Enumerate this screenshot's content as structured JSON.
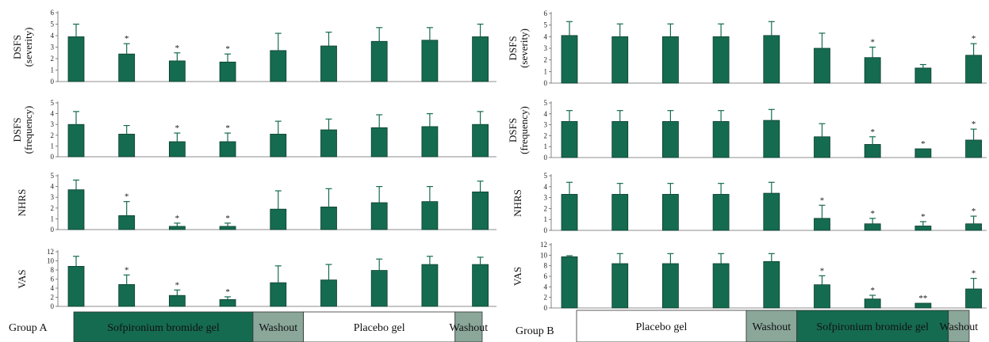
{
  "colors": {
    "bar": "#156b50",
    "bar_edge": "#0b3d2d",
    "error_bar": "#156b50",
    "active_segment": "#156b50",
    "washout_segment": "#8aa79a",
    "placebo_segment": "#ffffff"
  },
  "chart_data": [
    {
      "type": "bar",
      "panel": "A",
      "row": 0,
      "ylabel": [
        "DSFS",
        "(severity)"
      ],
      "yticks": [
        0,
        1,
        2,
        3,
        4,
        5,
        6
      ],
      "ylim": [
        0,
        6
      ],
      "values": [
        3.9,
        2.4,
        1.8,
        1.7,
        2.7,
        3.1,
        3.5,
        3.6,
        3.9
      ],
      "errors": [
        1.1,
        0.9,
        0.7,
        0.7,
        1.5,
        1.2,
        1.2,
        1.1,
        1.1
      ],
      "sig": [
        "",
        "*",
        "*",
        "*",
        "",
        "",
        "",
        "",
        ""
      ]
    },
    {
      "type": "bar",
      "panel": "A",
      "row": 1,
      "ylabel": [
        "DSFS",
        "(frequency)"
      ],
      "yticks": [
        0,
        1,
        2,
        3,
        4,
        5
      ],
      "ylim": [
        0,
        5
      ],
      "values": [
        3.0,
        2.1,
        1.4,
        1.4,
        2.1,
        2.5,
        2.7,
        2.8,
        3.0
      ],
      "errors": [
        1.2,
        0.8,
        0.8,
        0.8,
        1.2,
        1.0,
        1.2,
        1.2,
        1.2
      ],
      "sig": [
        "",
        "",
        "*",
        "*",
        "",
        "",
        "",
        "",
        ""
      ]
    },
    {
      "type": "bar",
      "panel": "A",
      "row": 2,
      "ylabel": [
        "NHRS"
      ],
      "yticks": [
        0,
        1,
        2,
        3,
        4,
        5
      ],
      "ylim": [
        0,
        5
      ],
      "values": [
        3.7,
        1.3,
        0.3,
        0.3,
        1.9,
        2.1,
        2.5,
        2.6,
        3.5
      ],
      "errors": [
        0.9,
        1.3,
        0.3,
        0.3,
        1.7,
        1.7,
        1.5,
        1.4,
        1.0
      ],
      "sig": [
        "",
        "*",
        "*",
        "*",
        "",
        "",
        "",
        "",
        ""
      ]
    },
    {
      "type": "bar",
      "panel": "A",
      "row": 3,
      "ylabel": [
        "VAS"
      ],
      "yticks": [
        0,
        2,
        4,
        6,
        8,
        10,
        12
      ],
      "ylim": [
        0,
        12
      ],
      "values": [
        8.8,
        4.8,
        2.4,
        1.5,
        5.2,
        5.8,
        7.9,
        9.2,
        9.2
      ],
      "errors": [
        2.2,
        2.1,
        1.2,
        0.6,
        3.7,
        3.4,
        2.5,
        1.8,
        1.6
      ],
      "sig": [
        "",
        "*",
        "*",
        "*",
        "",
        "",
        "",
        "",
        ""
      ]
    },
    {
      "type": "bar",
      "panel": "B",
      "row": 0,
      "ylabel": [
        "DSFS",
        "(severity)"
      ],
      "yticks": [
        0,
        1,
        2,
        3,
        4,
        5,
        6
      ],
      "ylim": [
        0,
        6
      ],
      "values": [
        4.1,
        4.0,
        4.0,
        4.0,
        4.1,
        3.0,
        2.2,
        1.3,
        2.4
      ],
      "errors": [
        1.2,
        1.1,
        1.1,
        1.1,
        1.2,
        1.3,
        0.9,
        0.3,
        1.0
      ],
      "sig": [
        "",
        "",
        "",
        "",
        "",
        "",
        "*",
        "",
        "*"
      ]
    },
    {
      "type": "bar",
      "panel": "B",
      "row": 1,
      "ylabel": [
        "DSFS",
        "(frequency)"
      ],
      "yticks": [
        0,
        1,
        2,
        3,
        4,
        5
      ],
      "ylim": [
        0,
        5
      ],
      "values": [
        3.3,
        3.3,
        3.3,
        3.3,
        3.4,
        1.9,
        1.2,
        0.8,
        1.6
      ],
      "errors": [
        1.0,
        1.0,
        1.0,
        1.0,
        1.0,
        1.2,
        0.7,
        0,
        1.0
      ],
      "sig": [
        "",
        "",
        "",
        "",
        "",
        "",
        "*",
        "*",
        "*"
      ]
    },
    {
      "type": "bar",
      "panel": "B",
      "row": 2,
      "ylabel": [
        "NHRS"
      ],
      "yticks": [
        0,
        1,
        2,
        3,
        4,
        5
      ],
      "ylim": [
        0,
        5
      ],
      "values": [
        3.3,
        3.3,
        3.3,
        3.3,
        3.4,
        1.1,
        0.6,
        0.4,
        0.6
      ],
      "errors": [
        1.1,
        1.0,
        1.0,
        1.0,
        1.0,
        1.2,
        0.5,
        0.4,
        0.7
      ],
      "sig": [
        "",
        "",
        "",
        "",
        "",
        "*",
        "*",
        "*",
        "*"
      ]
    },
    {
      "type": "bar",
      "panel": "B",
      "row": 3,
      "ylabel": [
        "VAS"
      ],
      "yticks": [
        0,
        2,
        4,
        6,
        8,
        10,
        12
      ],
      "ylim": [
        0,
        12
      ],
      "values": [
        9.7,
        8.4,
        8.4,
        8.4,
        8.8,
        4.4,
        1.7,
        0.9,
        3.6
      ],
      "errors": [
        0.2,
        1.9,
        1.9,
        1.9,
        1.5,
        1.7,
        0.7,
        0,
        2.0
      ],
      "sig": [
        "",
        "",
        "",
        "",
        "",
        "*",
        "*",
        "**",
        "*"
      ]
    }
  ],
  "timeline": {
    "A": {
      "group_label": "Group A",
      "segments": [
        {
          "label": "Sofpironium bromide gel",
          "kind": "active",
          "from": 0,
          "to": 3.5
        },
        {
          "label": "Washout",
          "kind": "washout",
          "from": 3.5,
          "to": 4.5
        },
        {
          "label": "Placebo gel",
          "kind": "placebo",
          "from": 4.5,
          "to": 7.5
        },
        {
          "label": "Washout",
          "kind": "washout",
          "from": 7.5,
          "to": 8.5
        }
      ]
    },
    "B": {
      "group_label": "Group B",
      "segments": [
        {
          "label": "Placebo gel",
          "kind": "placebo",
          "from": 0,
          "to": 3.5
        },
        {
          "label": "Washout",
          "kind": "washout",
          "from": 3.5,
          "to": 4.5
        },
        {
          "label": "Sofpironium bromide gel",
          "kind": "active",
          "from": 4.5,
          "to": 7.5
        },
        {
          "label": "Washout",
          "kind": "washout",
          "from": 7.5,
          "to": 8.5
        }
      ]
    }
  }
}
